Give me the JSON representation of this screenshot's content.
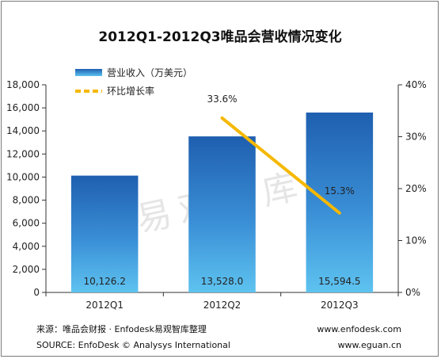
{
  "chart_data": {
    "type": "bar",
    "title": "2012Q1-2012Q3唯品会营收情况变化",
    "categories": [
      "2012Q1",
      "2012Q2",
      "2012Q3"
    ],
    "series": [
      {
        "name": "营业收入（万美元）",
        "type": "bar",
        "axis": "left",
        "values": [
          10126.2,
          13528.0,
          15594.5
        ],
        "labels": [
          "10,126.2",
          "13,528.0",
          "15,594.5"
        ]
      },
      {
        "name": "环比增长率",
        "type": "line",
        "axis": "right",
        "values": [
          null,
          33.6,
          15.3
        ],
        "labels": [
          "",
          "33.6%",
          "15.3%"
        ]
      }
    ],
    "y_left": {
      "lim": [
        0,
        18000
      ],
      "ticks": [
        0,
        2000,
        4000,
        6000,
        8000,
        10000,
        12000,
        14000,
        16000,
        18000
      ],
      "tick_labels": [
        "0",
        "2,000",
        "4,000",
        "6,000",
        "8,000",
        "10,000",
        "12,000",
        "14,000",
        "16,000",
        "18,000"
      ]
    },
    "y_right": {
      "lim": [
        0,
        40
      ],
      "ticks": [
        0,
        10,
        20,
        30,
        40
      ],
      "tick_labels": [
        "0%",
        "10%",
        "20%",
        "30%",
        "40%"
      ]
    },
    "legend_position": "top-left",
    "grid": false,
    "colors": {
      "bar_top": "#1f5fb0",
      "bar_bottom": "#5ec3f0",
      "line": "#f5b800"
    }
  },
  "watermark": "易观智库",
  "footer": {
    "source_cn": "来源：唯品会财报 · Enfodesk易观智库整理",
    "source_en": "SOURCE:  EnfoDesk © Analysys International",
    "url1": "www.enfodesk.com",
    "url2": "www.eguan.cn"
  }
}
